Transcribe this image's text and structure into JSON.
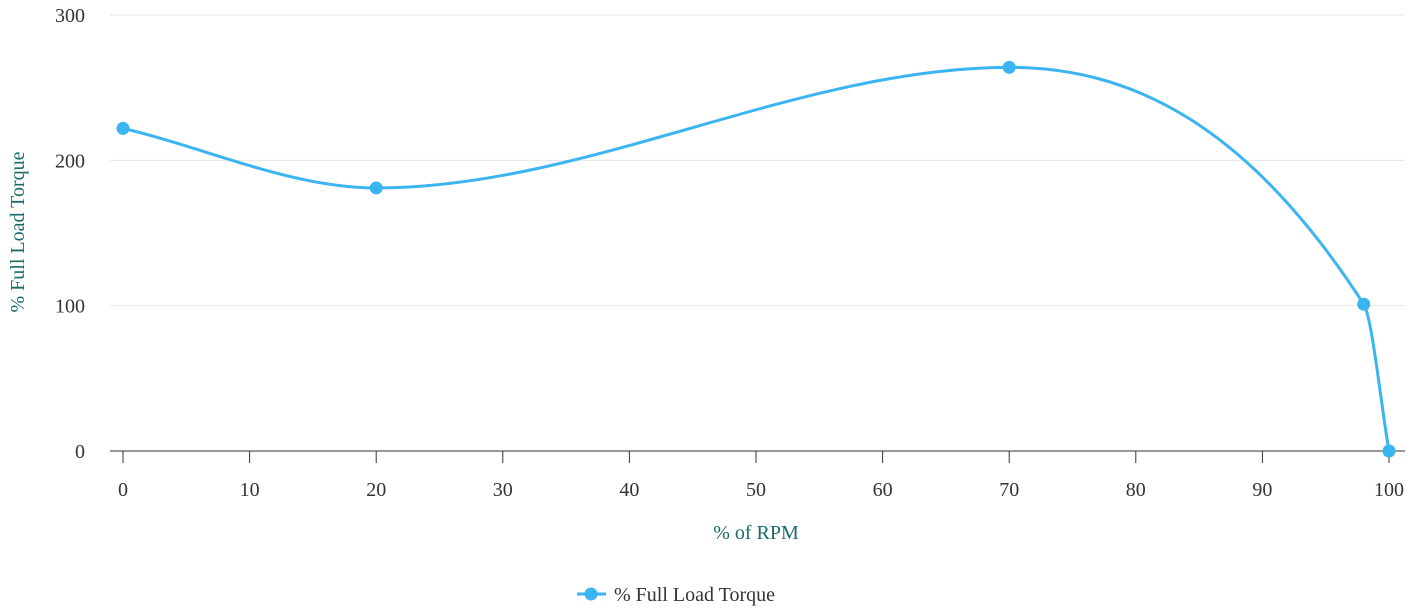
{
  "chart_data": {
    "type": "line",
    "smooth": true,
    "xlabel": "% of RPM",
    "ylabel": "% Full Load Torque",
    "xlim": [
      0,
      100
    ],
    "ylim": [
      0,
      300
    ],
    "xticks": [
      0,
      10,
      20,
      30,
      40,
      50,
      60,
      70,
      80,
      90,
      100
    ],
    "yticks": [
      0,
      100,
      200,
      300
    ],
    "grid": "horizontal",
    "legend": "bottom-center",
    "series": [
      {
        "name": "% Full Load Torque",
        "color": "#3bb4f2",
        "x": [
          0,
          20,
          70,
          98,
          100
        ],
        "y": [
          222,
          181,
          264,
          101,
          0
        ]
      }
    ],
    "colors": {
      "axis_title": "#1b6a6a",
      "grid": "#e6e6e6",
      "axis": "#333333"
    }
  }
}
